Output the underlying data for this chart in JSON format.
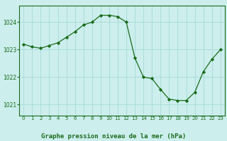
{
  "x": [
    0,
    1,
    2,
    3,
    4,
    5,
    6,
    7,
    8,
    9,
    10,
    11,
    12,
    13,
    14,
    15,
    16,
    17,
    18,
    19,
    20,
    21,
    22,
    23
  ],
  "y": [
    1023.2,
    1023.1,
    1023.05,
    1023.15,
    1023.25,
    1023.45,
    1023.65,
    1023.9,
    1024.0,
    1024.25,
    1024.25,
    1024.2,
    1024.0,
    1022.7,
    1022.0,
    1021.95,
    1021.55,
    1021.2,
    1021.15,
    1021.15,
    1021.45,
    1022.2,
    1022.65,
    1023.0
  ],
  "line_color": "#1a6b1a",
  "marker": "D",
  "marker_size": 2.2,
  "background_color": "#cceeed",
  "grid_color": "#aaddda",
  "xlabel": "Graphe pression niveau de la mer (hPa)",
  "yticks": [
    1021,
    1022,
    1023,
    1024
  ],
  "xticks": [
    0,
    1,
    2,
    3,
    4,
    5,
    6,
    7,
    8,
    9,
    10,
    11,
    12,
    13,
    14,
    15,
    16,
    17,
    18,
    19,
    20,
    21,
    22,
    23
  ],
  "ylim": [
    1020.6,
    1024.6
  ],
  "xlim": [
    -0.5,
    23.5
  ],
  "tick_color": "#1a6b1a",
  "spine_color": "#1a6b1a",
  "label_color": "#1a6b1a"
}
